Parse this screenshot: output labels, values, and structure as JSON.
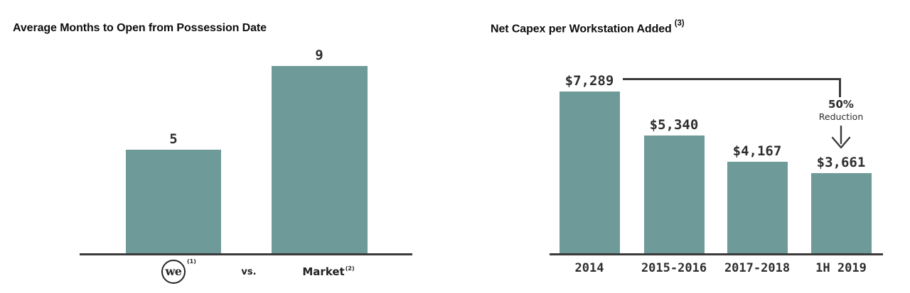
{
  "colors": {
    "bar": "#6E9B99",
    "axis": "#3A3A3A",
    "text": "#2E2E2E",
    "title": "#0E0E0E"
  },
  "chart_data": [
    {
      "type": "bar",
      "title": "Average Months to Open from Possession Date",
      "categories": [
        "we (1)",
        "Market (2)"
      ],
      "values": [
        5,
        9
      ],
      "data_labels": [
        "5",
        "9"
      ],
      "ylim": [
        0,
        9
      ],
      "grid": false,
      "legend": "none",
      "x_axis": {
        "we_logo": "we",
        "we_footnote": "(1)",
        "separator": "vs.",
        "market_label": "Market",
        "market_footnote": "(2)"
      }
    },
    {
      "type": "bar",
      "title": "Net Capex per Workstation Added",
      "title_footnote": "(3)",
      "categories": [
        "2014",
        "2015-2016",
        "2017-2018",
        "1H 2019"
      ],
      "values": [
        7289,
        5340,
        4167,
        3661
      ],
      "data_labels": [
        "$7,289",
        "$5,340",
        "$4,167",
        "$3,661"
      ],
      "ylim": [
        0,
        7289
      ],
      "grid": false,
      "legend": "none",
      "annotation": {
        "top": "50%",
        "bottom": "Reduction"
      }
    }
  ]
}
